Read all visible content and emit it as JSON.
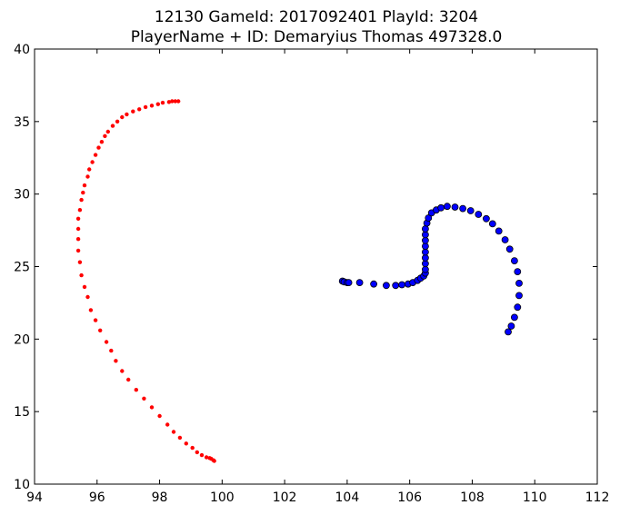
{
  "chart_data": {
    "type": "scatter",
    "title_lines": [
      "12130 GameId: 2017092401 PlayId: 3204",
      "PlayerName + ID: Demaryius Thomas 497328.0"
    ],
    "xlabel": "",
    "ylabel": "",
    "xlim": [
      94,
      112
    ],
    "ylim": [
      10,
      40
    ],
    "xticks": [
      94,
      96,
      98,
      100,
      102,
      104,
      106,
      108,
      110,
      112
    ],
    "yticks": [
      10,
      15,
      20,
      25,
      30,
      35,
      40
    ],
    "grid": false,
    "legend": "none",
    "series": [
      {
        "color": "#ff0000",
        "marker": "small-dot",
        "points": [
          [
            98.6,
            36.4
          ],
          [
            98.5,
            36.4
          ],
          [
            98.4,
            36.4
          ],
          [
            98.3,
            36.35
          ],
          [
            98.1,
            36.3
          ],
          [
            97.95,
            36.2
          ],
          [
            97.75,
            36.1
          ],
          [
            97.55,
            36.0
          ],
          [
            97.35,
            35.85
          ],
          [
            97.15,
            35.7
          ],
          [
            96.95,
            35.5
          ],
          [
            96.8,
            35.3
          ],
          [
            96.65,
            35.0
          ],
          [
            96.5,
            34.7
          ],
          [
            96.35,
            34.3
          ],
          [
            96.25,
            34.0
          ],
          [
            96.15,
            33.6
          ],
          [
            96.05,
            33.2
          ],
          [
            95.95,
            32.7
          ],
          [
            95.85,
            32.2
          ],
          [
            95.75,
            31.7
          ],
          [
            95.7,
            31.2
          ],
          [
            95.6,
            30.6
          ],
          [
            95.55,
            30.1
          ],
          [
            95.5,
            29.6
          ],
          [
            95.45,
            28.9
          ],
          [
            95.4,
            28.3
          ],
          [
            95.4,
            27.6
          ],
          [
            95.4,
            26.9
          ],
          [
            95.4,
            26.1
          ],
          [
            95.45,
            25.3
          ],
          [
            95.5,
            24.4
          ],
          [
            95.6,
            23.6
          ],
          [
            95.7,
            22.9
          ],
          [
            95.8,
            22.0
          ],
          [
            95.95,
            21.3
          ],
          [
            96.1,
            20.6
          ],
          [
            96.3,
            19.8
          ],
          [
            96.45,
            19.2
          ],
          [
            96.6,
            18.5
          ],
          [
            96.8,
            17.8
          ],
          [
            97.0,
            17.2
          ],
          [
            97.25,
            16.5
          ],
          [
            97.5,
            15.9
          ],
          [
            97.75,
            15.3
          ],
          [
            98.0,
            14.7
          ],
          [
            98.25,
            14.1
          ],
          [
            98.45,
            13.6
          ],
          [
            98.65,
            13.2
          ],
          [
            98.85,
            12.8
          ],
          [
            99.05,
            12.5
          ],
          [
            99.2,
            12.2
          ],
          [
            99.35,
            12.0
          ],
          [
            99.5,
            11.85
          ],
          [
            99.6,
            11.8
          ],
          [
            99.65,
            11.75
          ],
          [
            99.72,
            11.65
          ],
          [
            99.75,
            11.6
          ]
        ]
      },
      {
        "color": "#0000ff",
        "marker": "circle",
        "points": [
          [
            103.85,
            24.0
          ],
          [
            103.9,
            23.95
          ],
          [
            104.0,
            23.9
          ],
          [
            104.05,
            23.9
          ],
          [
            104.4,
            23.9
          ],
          [
            104.85,
            23.8
          ],
          [
            105.25,
            23.7
          ],
          [
            105.55,
            23.7
          ],
          [
            105.75,
            23.75
          ],
          [
            105.95,
            23.8
          ],
          [
            106.1,
            23.9
          ],
          [
            106.25,
            24.05
          ],
          [
            106.35,
            24.2
          ],
          [
            106.45,
            24.35
          ],
          [
            106.5,
            24.55
          ],
          [
            106.5,
            24.8
          ],
          [
            106.5,
            25.2
          ],
          [
            106.5,
            25.6
          ],
          [
            106.5,
            26.0
          ],
          [
            106.5,
            26.4
          ],
          [
            106.5,
            26.8
          ],
          [
            106.5,
            27.2
          ],
          [
            106.5,
            27.6
          ],
          [
            106.55,
            28.0
          ],
          [
            106.6,
            28.35
          ],
          [
            106.7,
            28.7
          ],
          [
            106.85,
            28.9
          ],
          [
            107.0,
            29.05
          ],
          [
            107.2,
            29.15
          ],
          [
            107.45,
            29.1
          ],
          [
            107.7,
            29.0
          ],
          [
            107.95,
            28.85
          ],
          [
            108.2,
            28.6
          ],
          [
            108.45,
            28.3
          ],
          [
            108.65,
            27.95
          ],
          [
            108.85,
            27.45
          ],
          [
            109.05,
            26.85
          ],
          [
            109.2,
            26.2
          ],
          [
            109.35,
            25.4
          ],
          [
            109.45,
            24.65
          ],
          [
            109.5,
            23.85
          ],
          [
            109.5,
            23.0
          ],
          [
            109.45,
            22.2
          ],
          [
            109.35,
            21.5
          ],
          [
            109.25,
            20.9
          ],
          [
            109.15,
            20.5
          ]
        ]
      }
    ]
  }
}
